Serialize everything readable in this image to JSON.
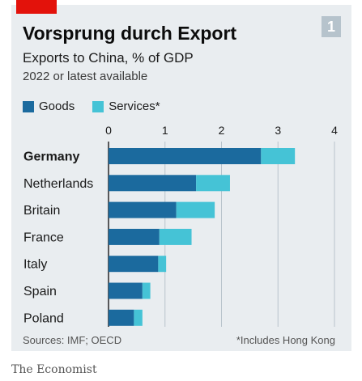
{
  "header": {
    "title": "Vorsprung durch Export",
    "subtitle": "Exports to China, % of GDP",
    "note": "2022 or latest available",
    "badge": "1"
  },
  "footer": {
    "source": "Sources: IMF; OECD",
    "footnote": "*Includes Hong Kong",
    "brand": "The Economist"
  },
  "colors": {
    "goods": "#1b6a9e",
    "services": "#45c3d6",
    "accent": "#e3120b"
  },
  "chart_data": {
    "type": "bar",
    "orientation": "horizontal",
    "stacked": true,
    "categories": [
      "Germany",
      "Netherlands",
      "Britain",
      "France",
      "Italy",
      "Spain",
      "Poland"
    ],
    "highlight": "Germany",
    "series": [
      {
        "name": "Goods",
        "values": [
          2.7,
          1.55,
          1.2,
          0.9,
          0.88,
          0.6,
          0.45
        ]
      },
      {
        "name": "Services*",
        "values": [
          0.6,
          0.6,
          0.68,
          0.57,
          0.14,
          0.14,
          0.15
        ]
      }
    ],
    "xlim": [
      0,
      4
    ],
    "xticks": [
      0,
      1,
      2,
      3,
      4
    ],
    "grid": true,
    "legend": "top-left"
  }
}
